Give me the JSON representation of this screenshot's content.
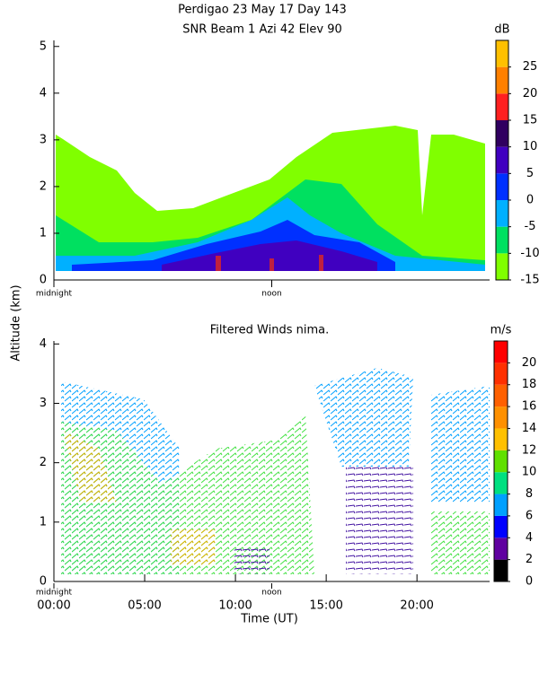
{
  "chart_data": [
    {
      "type": "heatmap",
      "title": [
        "Perdigao  23 May 17 Day 143",
        "SNR Beam 1 Azi  42 Elev 90"
      ],
      "ylabel": "Altitude (km)",
      "xlim": [
        0,
        24
      ],
      "xticks": [
        {
          "value": 0,
          "label": "midnight"
        },
        {
          "value": 12,
          "label": "noon"
        }
      ],
      "ylim": [
        0,
        5.13
      ],
      "yticks": [
        0,
        1,
        2,
        3,
        4,
        5
      ],
      "colorbar": {
        "label": "dB",
        "bins": [
          -15,
          -10,
          -5,
          0,
          5,
          10,
          15,
          20,
          25,
          30
        ],
        "colors": [
          "#80ff00",
          "#00e060",
          "#00b0ff",
          "#0030ff",
          "#4000c0",
          "#300060",
          "#ff2020",
          "#ff8000",
          "#ffc000"
        ],
        "ticks": [
          -15,
          -10,
          -5,
          0,
          5,
          10,
          15,
          20,
          25
        ]
      }
    },
    {
      "type": "barbs",
      "title": "Filtered Winds nima.",
      "xlabel": "Time (UT)",
      "xlim": [
        0,
        24
      ],
      "xticks": [
        {
          "value": 0,
          "label": "00:00"
        },
        {
          "value": 5,
          "label": "05:00"
        },
        {
          "value": 10,
          "label": "10:00"
        },
        {
          "value": 15,
          "label": "15:00"
        },
        {
          "value": 20,
          "label": "20:00"
        }
      ],
      "day_marks": [
        {
          "value": 0,
          "label": "midnight"
        },
        {
          "value": 12,
          "label": "noon"
        }
      ],
      "ylim": [
        0,
        4.05
      ],
      "yticks": [
        0,
        1,
        2,
        3,
        4
      ],
      "colorbar": {
        "label": "m/s",
        "bins": [
          0,
          2,
          4,
          6,
          8,
          10,
          12,
          14,
          16,
          18,
          20,
          22
        ],
        "colors": [
          "#000000",
          "#6000a0",
          "#0000ff",
          "#00a0ff",
          "#00e080",
          "#60e000",
          "#ffc000",
          "#ff9000",
          "#ff6000",
          "#ff3000",
          "#ff0000"
        ],
        "ticks": [
          0,
          2,
          4,
          6,
          8,
          10,
          12,
          14,
          16,
          18,
          20
        ]
      }
    }
  ]
}
